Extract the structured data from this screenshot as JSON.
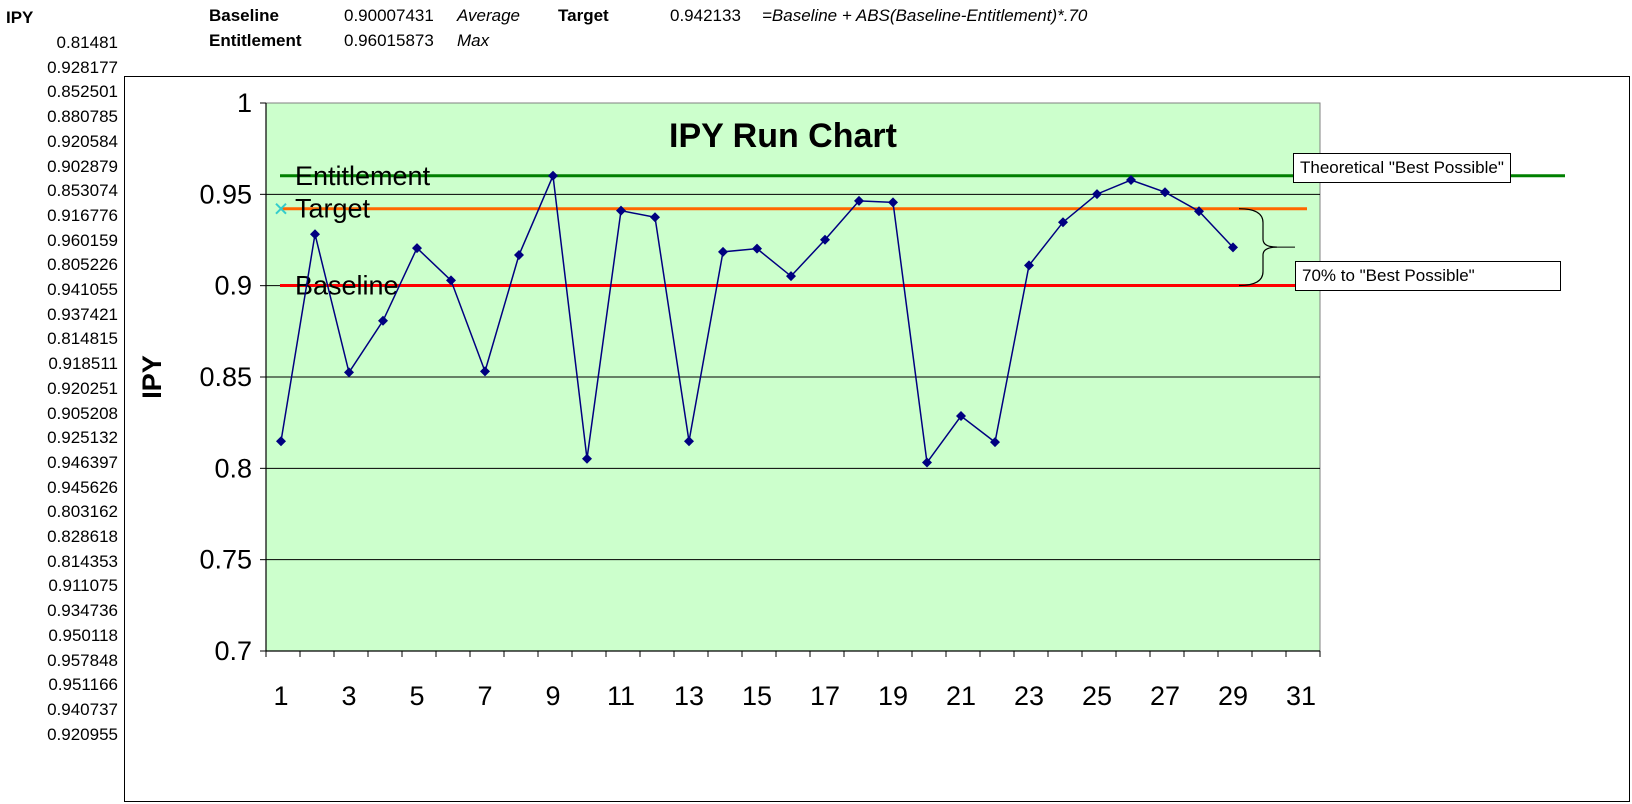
{
  "sheet": {
    "col_header": "IPY",
    "ipy_values": [
      "0.81481",
      "0.928177",
      "0.852501",
      "0.880785",
      "0.920584",
      "0.902879",
      "0.853074",
      "0.916776",
      "0.960159",
      "0.805226",
      "0.941055",
      "0.937421",
      "0.814815",
      "0.918511",
      "0.920251",
      "0.905208",
      "0.925132",
      "0.946397",
      "0.945626",
      "0.803162",
      "0.828618",
      "0.814353",
      "0.911075",
      "0.934736",
      "0.950118",
      "0.957848",
      "0.951166",
      "0.940737",
      "0.920955"
    ],
    "baseline_label": "Baseline",
    "baseline_value": "0.90007431",
    "baseline_note": "Average",
    "entitlement_label": "Entitlement",
    "entitlement_value": "0.96015873",
    "entitlement_note": "Max",
    "target_label": "Target",
    "target_value": "0.942133",
    "target_formula": "=Baseline + ABS(Baseline-Entitlement)*.70"
  },
  "callouts": {
    "best_possible": "Theoretical \"Best Possible\"",
    "seventy_pct": "70% to \"Best Possible\""
  },
  "colors": {
    "plot_bg": "#ccffcc",
    "series": "#000080",
    "entitlement": "#008000",
    "target": "#ff6600",
    "baseline": "#ff0000",
    "target_marker": "#33cccc"
  },
  "chart_data": {
    "type": "line",
    "title": "IPY Run Chart",
    "ylabel": "IPY",
    "xlabel": "",
    "ylim": [
      0.7,
      1
    ],
    "yticks": [
      0.7,
      0.75,
      0.8,
      0.85,
      0.9,
      0.95,
      1
    ],
    "ytick_labels": [
      "0.7",
      "0.75",
      "0.8",
      "0.85",
      "0.9",
      "0.95",
      "1"
    ],
    "xlim": [
      1,
      32
    ],
    "xtick_labels": [
      "1",
      "3",
      "5",
      "7",
      "9",
      "11",
      "13",
      "15",
      "17",
      "19",
      "21",
      "23",
      "25",
      "27",
      "29",
      "31"
    ],
    "xticks": [
      1,
      3,
      5,
      7,
      9,
      11,
      13,
      15,
      17,
      19,
      21,
      23,
      25,
      27,
      29,
      31
    ],
    "grid": true,
    "series": [
      {
        "name": "",
        "x": [
          1,
          2,
          3,
          4,
          5,
          6,
          7,
          8,
          9,
          10,
          11,
          12,
          13,
          14,
          15,
          16,
          17,
          18,
          19,
          20,
          21,
          22,
          23,
          24,
          25,
          26,
          27,
          28,
          29
        ],
        "values": [
          0.81481,
          0.928177,
          0.852501,
          0.880785,
          0.920584,
          0.902879,
          0.853074,
          0.916776,
          0.960159,
          0.805226,
          0.941055,
          0.937421,
          0.814815,
          0.918511,
          0.920251,
          0.905208,
          0.925132,
          0.946397,
          0.945626,
          0.803162,
          0.828618,
          0.814353,
          0.911075,
          0.934736,
          0.950118,
          0.957848,
          0.951166,
          0.940737,
          0.920955
        ]
      }
    ],
    "reference_lines": [
      {
        "name": "Entitlement",
        "value": 0.96015873
      },
      {
        "name": "Target",
        "value": 0.942133
      },
      {
        "name": "Baseline",
        "value": 0.90007431
      }
    ]
  }
}
